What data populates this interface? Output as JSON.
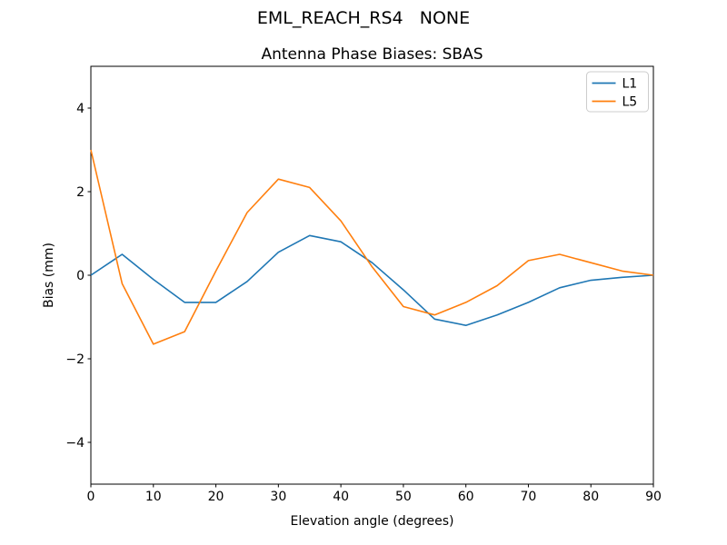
{
  "figure": {
    "suptitle": "EML_REACH_RS4   NONE"
  },
  "chart_data": {
    "type": "line",
    "title": "Antenna Phase Biases: SBAS",
    "xlabel": "Elevation angle (degrees)",
    "ylabel": "Bias (mm)",
    "xlim": [
      0,
      90
    ],
    "ylim": [
      -5,
      5
    ],
    "xticks": [
      0,
      10,
      20,
      30,
      40,
      50,
      60,
      70,
      80,
      90
    ],
    "xticklabels": [
      "0",
      "10",
      "20",
      "30",
      "40",
      "50",
      "60",
      "70",
      "80",
      "90"
    ],
    "yticks": [
      -4,
      -2,
      0,
      2,
      4
    ],
    "yticklabels": [
      "−4",
      "−2",
      "0",
      "2",
      "4"
    ],
    "grid": false,
    "legend_position": "upper right",
    "x": [
      0,
      5,
      10,
      15,
      20,
      25,
      30,
      35,
      40,
      45,
      50,
      55,
      60,
      65,
      70,
      75,
      80,
      85,
      90
    ],
    "series": [
      {
        "name": "L1",
        "color": "#1f77b4",
        "values": [
          0.0,
          0.5,
          -0.1,
          -0.65,
          -0.65,
          -0.15,
          0.55,
          0.95,
          0.8,
          0.3,
          -0.35,
          -1.05,
          -1.2,
          -0.95,
          -0.65,
          -0.3,
          -0.12,
          -0.05,
          0.0
        ]
      },
      {
        "name": "L5",
        "color": "#ff7f0e",
        "values": [
          3.0,
          -0.2,
          -1.65,
          -1.35,
          0.1,
          1.5,
          2.3,
          2.1,
          1.3,
          0.2,
          -0.75,
          -0.95,
          -0.65,
          -0.25,
          0.35,
          0.5,
          0.3,
          0.1,
          0.0
        ]
      }
    ]
  }
}
